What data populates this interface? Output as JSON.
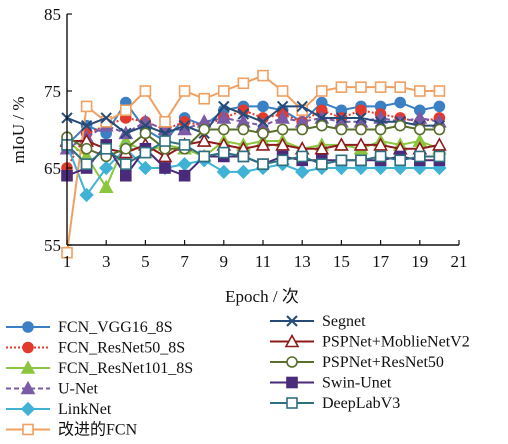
{
  "chart_data": {
    "type": "line",
    "xlabel": "Epoch / 次",
    "ylabel": "mIoU / %",
    "xlim": [
      1,
      21
    ],
    "ylim": [
      55,
      85
    ],
    "xticks": [
      1,
      3,
      5,
      7,
      9,
      11,
      13,
      15,
      17,
      19,
      21
    ],
    "yticks": [
      55,
      65,
      75,
      85
    ],
    "grid": false,
    "legend_position": "bottom",
    "x": [
      1,
      2,
      3,
      4,
      5,
      6,
      7,
      8,
      9,
      10,
      11,
      12,
      13,
      14,
      15,
      16,
      17,
      18,
      19,
      20
    ],
    "series": [
      {
        "name": "FCN_VGG16_8S",
        "color": "#3b7fc4",
        "marker": "circle-filled",
        "dash": "",
        "values": [
          68.0,
          70.5,
          69.5,
          73.5,
          70.0,
          68.5,
          71.5,
          70.5,
          72.5,
          73.0,
          73.0,
          72.5,
          71.0,
          73.5,
          72.5,
          73.0,
          73.0,
          73.5,
          72.5,
          73.0
        ]
      },
      {
        "name": "FCN_ResNet50_8S",
        "color": "#e23b2e",
        "marker": "circle-filled",
        "dash": "2,2",
        "values": [
          65.0,
          69.5,
          70.5,
          71.5,
          71.0,
          70.0,
          71.0,
          70.5,
          71.5,
          72.5,
          71.5,
          72.0,
          71.0,
          72.5,
          71.5,
          72.5,
          72.0,
          71.5,
          71.0,
          71.5
        ]
      },
      {
        "name": "FCN_ResNet101_8S",
        "color": "#8cc63f",
        "marker": "triangle-filled",
        "dash": "",
        "values": [
          68.5,
          66.5,
          62.5,
          68.5,
          67.0,
          68.0,
          67.5,
          66.5,
          68.5,
          68.0,
          68.5,
          68.5,
          67.5,
          68.0,
          68.0,
          67.5,
          68.5,
          68.0,
          68.5,
          67.5
        ]
      },
      {
        "name": "U-Net",
        "color": "#7b5aa6",
        "marker": "triangle-filled",
        "dash": "5,3",
        "values": [
          67.5,
          69.0,
          70.5,
          69.5,
          71.0,
          70.0,
          70.0,
          71.0,
          71.5,
          71.0,
          70.5,
          71.5,
          71.0,
          71.5,
          71.0,
          71.0,
          71.5,
          71.0,
          71.5,
          71.0
        ]
      },
      {
        "name": "LinkNet",
        "color": "#3fb2d6",
        "marker": "diamond-filled",
        "dash": "",
        "values": [
          68.0,
          61.5,
          65.0,
          67.5,
          65.0,
          65.0,
          65.5,
          66.0,
          64.5,
          64.5,
          65.0,
          65.5,
          64.5,
          65.0,
          65.0,
          65.0,
          65.0,
          65.0,
          65.0,
          65.0
        ]
      },
      {
        "name": "改进的FCN",
        "color": "#f0a060",
        "marker": "square-open",
        "dash": "",
        "values": [
          54.0,
          73.0,
          71.0,
          72.5,
          75.0,
          71.0,
          75.0,
          74.0,
          75.0,
          76.0,
          77.0,
          75.0,
          72.5,
          75.0,
          75.5,
          75.5,
          75.5,
          75.5,
          75.0,
          75.0
        ]
      },
      {
        "name": "Segnet",
        "color": "#264b78",
        "marker": "x",
        "dash": "",
        "values": [
          71.5,
          70.5,
          71.5,
          69.5,
          70.5,
          69.5,
          70.5,
          69.5,
          73.0,
          72.0,
          71.0,
          73.0,
          73.0,
          71.5,
          71.5,
          71.5,
          71.0,
          71.0,
          70.5,
          70.5
        ]
      },
      {
        "name": "PSPNet+MoblieNetV2",
        "color": "#8e1b1b",
        "marker": "triangle-open",
        "dash": "",
        "values": [
          68.5,
          68.5,
          67.5,
          67.0,
          68.0,
          66.5,
          68.0,
          68.5,
          68.0,
          67.5,
          68.0,
          68.0,
          67.5,
          67.5,
          68.0,
          68.0,
          68.0,
          67.5,
          67.5,
          68.0
        ]
      },
      {
        "name": "PSPNet+ResNet50",
        "color": "#5a6e2c",
        "marker": "circle-open",
        "dash": "",
        "values": [
          69.0,
          67.5,
          66.5,
          67.5,
          69.5,
          67.5,
          67.5,
          70.0,
          70.0,
          70.0,
          69.5,
          70.0,
          70.0,
          70.5,
          70.0,
          70.0,
          70.0,
          70.5,
          70.0,
          70.0
        ]
      },
      {
        "name": "Swin-Unet",
        "color": "#4a2a7a",
        "marker": "square-filled",
        "dash": "",
        "values": [
          64.0,
          65.0,
          68.0,
          64.0,
          67.5,
          65.0,
          64.0,
          66.5,
          66.5,
          66.5,
          65.5,
          66.5,
          66.0,
          66.0,
          66.0,
          66.0,
          66.0,
          66.5,
          66.0,
          66.0
        ]
      },
      {
        "name": "DeepLabV3",
        "color": "#2e6f80",
        "marker": "square-open",
        "dash": "",
        "values": [
          68.0,
          65.5,
          67.5,
          65.5,
          67.0,
          68.5,
          68.0,
          66.5,
          67.0,
          66.5,
          65.5,
          66.0,
          66.5,
          65.5,
          66.0,
          66.0,
          66.5,
          66.0,
          66.5,
          66.5
        ]
      }
    ]
  }
}
